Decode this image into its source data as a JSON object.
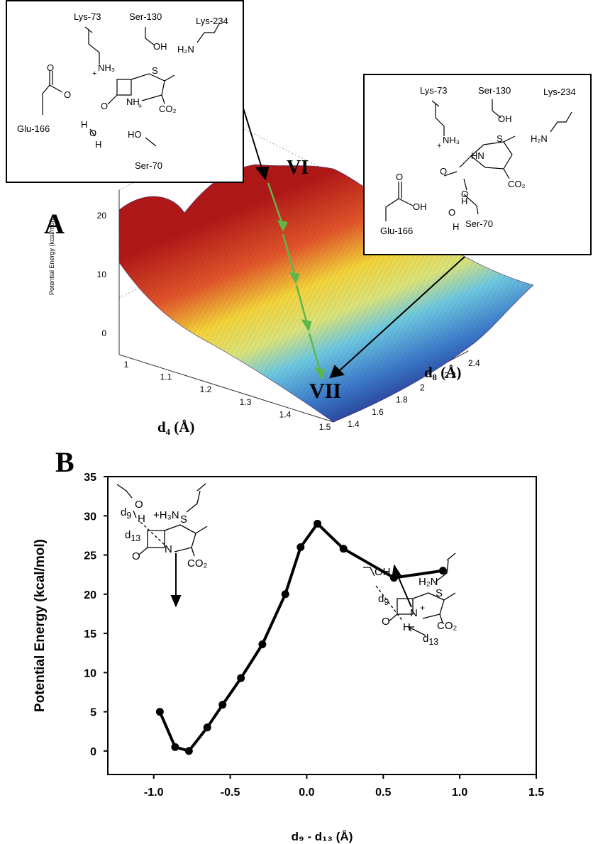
{
  "panel_a": {
    "letter": "A",
    "label_vi": "VI",
    "label_vii": "VII",
    "x_axis_label": "d₄ (Å)",
    "y_axis_label": "d₈ (Å)",
    "z_axis_label": "Potential Energy (kcal/mol)",
    "d4_ticks": [
      "1",
      "1.1",
      "1.2",
      "1.3",
      "1.4",
      "1.5"
    ],
    "d8_ticks": [
      "1.4",
      "1.6",
      "1.8",
      "2",
      "2.2",
      "2.4"
    ],
    "energy_ticks": [
      "0",
      "10",
      "20"
    ],
    "inset_vi": {
      "lys73": "Lys-73",
      "nh3": "NH₃",
      "plus": "+",
      "ser130": "Ser-130",
      "oh": "OH",
      "lys234": "Lys-234",
      "h2n": "H₂N",
      "glu166": "Glu-166",
      "o": "O",
      "h_top": "H",
      "h_bottom": "H",
      "ho": "HO",
      "ser70": "Ser-70",
      "s": "S",
      "nh_plus": "NH",
      "co2": "CO₂"
    },
    "inset_vii": {
      "lys73": "Lys-73",
      "nh3": "NH₃",
      "plus": "+",
      "ser130": "Ser-130",
      "oh": "OH",
      "lys234": "Lys-234",
      "h2n": "H₂N",
      "glu166": "Glu-166",
      "oh_acid": "OH",
      "o_ester": "O",
      "h_top": "H",
      "h_bottom": "H",
      "o_water": "O",
      "ser70": "Ser-70",
      "s": "S",
      "hn": "HN",
      "co2": "CO₂"
    }
  },
  "panel_b": {
    "letter": "B",
    "left_inset": {
      "d9": "d",
      "d9_sub": "9",
      "o": "O",
      "h": "H",
      "h3n": "+H₃N",
      "d13": "d",
      "d13_sub": "13",
      "s": "S",
      "n": "N",
      "o_carbonyl": "O",
      "co2": "CO₂"
    },
    "right_inset": {
      "oh": "OH",
      "h2n": "H₂N",
      "d9": "d",
      "d9_sub": "9",
      "s": "S",
      "n": "N",
      "plus": "+",
      "o_carbonyl": "O",
      "h": "H",
      "co2": "CO₂",
      "d13": "d",
      "d13_sub": "13"
    }
  },
  "chart_data": {
    "type": "line",
    "xlabel": "d₉ - d₁₃ (Å)",
    "ylabel": "Potential Energy (kcal/mol)",
    "xlim": [
      -1.3,
      1.5
    ],
    "ylim": [
      -3,
      35
    ],
    "x_ticks": [
      -1.0,
      -0.5,
      0.0,
      0.5,
      1.0,
      1.5
    ],
    "x_tick_labels": [
      "-1.0",
      "-0.5",
      "0.0",
      "0.5",
      "1.0",
      "1.5"
    ],
    "y_ticks": [
      0,
      5,
      10,
      15,
      20,
      25,
      30,
      35
    ],
    "y_tick_labels": [
      "0",
      "5",
      "10",
      "15",
      "20",
      "25",
      "30",
      "35"
    ],
    "grid": false,
    "series": [
      {
        "x": [
          -0.96,
          -0.86,
          -0.77,
          -0.65,
          -0.55,
          -0.43,
          -0.29,
          -0.14,
          -0.04,
          0.07,
          0.24,
          0.57,
          0.89
        ],
        "y": [
          5.0,
          0.5,
          0.0,
          3.0,
          5.9,
          9.3,
          13.6,
          20.0,
          26.0,
          29.0,
          25.8,
          22.1,
          23.0
        ]
      }
    ]
  }
}
